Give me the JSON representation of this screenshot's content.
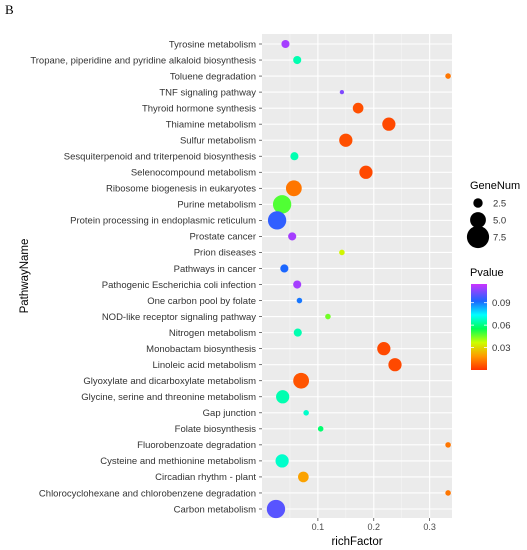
{
  "panel_label": "B",
  "chart_data": {
    "type": "scatter",
    "xlabel": "richFactor",
    "ylabel": "PathwayName",
    "xlim": [
      0.0,
      0.34
    ],
    "xticks": [
      0.1,
      0.2,
      0.3
    ],
    "xtick_labels": [
      "0.1",
      "0.2",
      "0.3"
    ],
    "grid": true,
    "legend_position": "right",
    "points": [
      {
        "pathway": "Tyrosine metabolism",
        "richFactor": 0.042,
        "GeneNum": 2,
        "Pvalue": 0.11
      },
      {
        "pathway": "Tropane, piperidine and pyridine alkaloid biosynthesis",
        "richFactor": 0.063,
        "GeneNum": 2,
        "Pvalue": 0.065
      },
      {
        "pathway": "Toluene degradation",
        "richFactor": 0.333,
        "GeneNum": 1,
        "Pvalue": 0.012
      },
      {
        "pathway": "TNF signaling pathway",
        "richFactor": 0.143,
        "GeneNum": 0.5,
        "Pvalue": 0.105
      },
      {
        "pathway": "Thyroid hormone synthesis",
        "richFactor": 0.172,
        "GeneNum": 3,
        "Pvalue": 0.005
      },
      {
        "pathway": "Thiamine metabolism",
        "richFactor": 0.227,
        "GeneNum": 4,
        "Pvalue": 0.004
      },
      {
        "pathway": "Sulfur metabolism",
        "richFactor": 0.15,
        "GeneNum": 4,
        "Pvalue": 0.005
      },
      {
        "pathway": "Sesquiterpenoid and triterpenoid biosynthesis",
        "richFactor": 0.058,
        "GeneNum": 2,
        "Pvalue": 0.065
      },
      {
        "pathway": "Selenocompound metabolism",
        "richFactor": 0.186,
        "GeneNum": 4,
        "Pvalue": 0.004
      },
      {
        "pathway": "Ribosome biogenesis in eukaryotes",
        "richFactor": 0.057,
        "GeneNum": 5,
        "Pvalue": 0.012
      },
      {
        "pathway": "Purine metabolism",
        "richFactor": 0.036,
        "GeneNum": 6,
        "Pvalue": 0.048
      },
      {
        "pathway": "Protein processing in endoplasmic reticulum",
        "richFactor": 0.027,
        "GeneNum": 6,
        "Pvalue": 0.095
      },
      {
        "pathway": "Prostate cancer",
        "richFactor": 0.054,
        "GeneNum": 2,
        "Pvalue": 0.11
      },
      {
        "pathway": "Prion diseases",
        "richFactor": 0.143,
        "GeneNum": 1,
        "Pvalue": 0.035
      },
      {
        "pathway": "Pathways in cancer",
        "richFactor": 0.04,
        "GeneNum": 2,
        "Pvalue": 0.092
      },
      {
        "pathway": "Pathogenic Escherichia coli infection",
        "richFactor": 0.063,
        "GeneNum": 2,
        "Pvalue": 0.11
      },
      {
        "pathway": "One carbon pool by folate",
        "richFactor": 0.067,
        "GeneNum": 1,
        "Pvalue": 0.09
      },
      {
        "pathway": "NOD-like receptor signaling pathway",
        "richFactor": 0.118,
        "GeneNum": 1,
        "Pvalue": 0.045
      },
      {
        "pathway": "Nitrogen metabolism",
        "richFactor": 0.064,
        "GeneNum": 2,
        "Pvalue": 0.065
      },
      {
        "pathway": "Monobactam biosynthesis",
        "richFactor": 0.218,
        "GeneNum": 4,
        "Pvalue": 0.004
      },
      {
        "pathway": "Linoleic acid metabolism",
        "richFactor": 0.238,
        "GeneNum": 4,
        "Pvalue": 0.004
      },
      {
        "pathway": "Glyoxylate and dicarboxylate metabolism",
        "richFactor": 0.07,
        "GeneNum": 5,
        "Pvalue": 0.006
      },
      {
        "pathway": "Glycine, serine and threonine metabolism",
        "richFactor": 0.037,
        "GeneNum": 4,
        "Pvalue": 0.065
      },
      {
        "pathway": "Gap junction",
        "richFactor": 0.079,
        "GeneNum": 1,
        "Pvalue": 0.068
      },
      {
        "pathway": "Folate biosynthesis",
        "richFactor": 0.105,
        "GeneNum": 1,
        "Pvalue": 0.058
      },
      {
        "pathway": "Fluorobenzoate degradation",
        "richFactor": 0.333,
        "GeneNum": 1,
        "Pvalue": 0.012
      },
      {
        "pathway": "Cysteine and methionine metabolism",
        "richFactor": 0.036,
        "GeneNum": 4,
        "Pvalue": 0.068
      },
      {
        "pathway": "Circadian rhythm - plant",
        "richFactor": 0.074,
        "GeneNum": 3,
        "Pvalue": 0.02
      },
      {
        "pathway": "Chlorocyclohexane and chlorobenzene degradation",
        "richFactor": 0.333,
        "GeneNum": 1,
        "Pvalue": 0.012
      },
      {
        "pathway": "Carbon metabolism",
        "richFactor": 0.025,
        "GeneNum": 6,
        "Pvalue": 0.1
      }
    ],
    "size_legend": {
      "title": "GeneNum",
      "values": [
        2.5,
        5.0,
        7.5
      ],
      "labels": [
        "2.5",
        "5.0",
        "7.5"
      ]
    },
    "color_legend": {
      "title": "Pvalue",
      "min": 0.0,
      "max": 0.115,
      "ticks": [
        0.03,
        0.06,
        0.09
      ],
      "tick_labels": [
        "0.03",
        "0.06",
        "0.09"
      ]
    }
  }
}
